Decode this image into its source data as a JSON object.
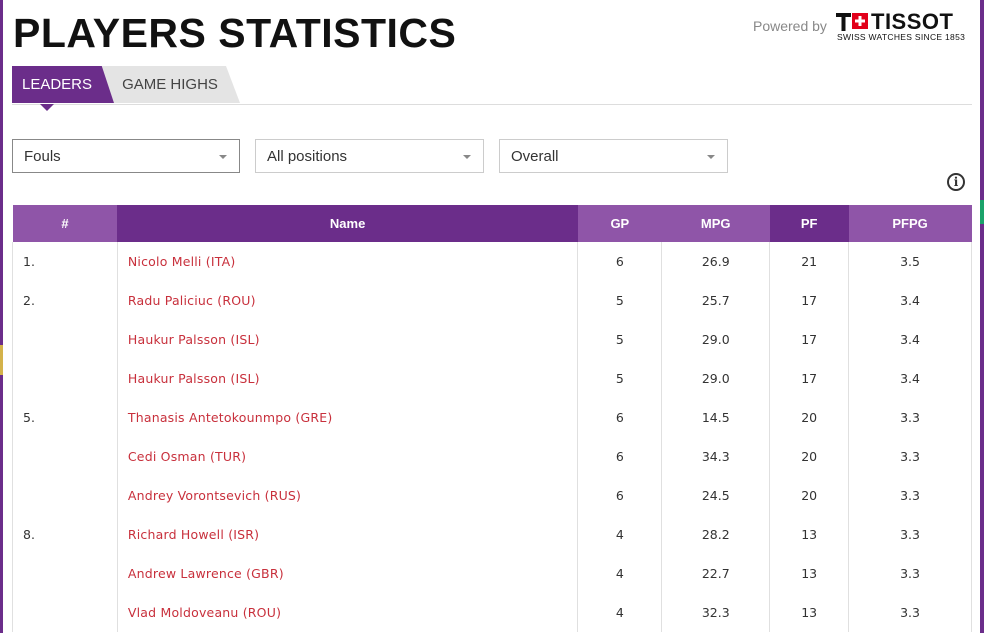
{
  "page": {
    "title": "PLAYERS STATISTICS"
  },
  "sponsor": {
    "powered_by": "Powered by",
    "brand": "TISSOT",
    "tagline": "SWISS WATCHES SINCE 1853"
  },
  "tabs": [
    {
      "label": "LEADERS",
      "active": true
    },
    {
      "label": "GAME HIGHS",
      "active": false
    }
  ],
  "filters": {
    "stat": "Fouls",
    "position": "All positions",
    "scope": "Overall"
  },
  "info_icon": "i",
  "colors": {
    "accent": "#6b2d8a",
    "accent_light": "#8f55a8",
    "player_link": "#c8303c"
  },
  "table": {
    "headers": [
      "#",
      "Name",
      "GP",
      "MPG",
      "PF",
      "PFPG"
    ],
    "rows": [
      {
        "rank": "1.",
        "name": "Nicolo Melli (ITA)",
        "gp": "6",
        "mpg": "26.9",
        "pf": "21",
        "pfpg": "3.5"
      },
      {
        "rank": "2.",
        "name": "Radu Paliciuc (ROU)",
        "gp": "5",
        "mpg": "25.7",
        "pf": "17",
        "pfpg": "3.4"
      },
      {
        "rank": "",
        "name": "Haukur Palsson (ISL)",
        "gp": "5",
        "mpg": "29.0",
        "pf": "17",
        "pfpg": "3.4"
      },
      {
        "rank": "",
        "name": "Haukur Palsson (ISL)",
        "gp": "5",
        "mpg": "29.0",
        "pf": "17",
        "pfpg": "3.4"
      },
      {
        "rank": "5.",
        "name": "Thanasis Antetokounmpo (GRE)",
        "gp": "6",
        "mpg": "14.5",
        "pf": "20",
        "pfpg": "3.3"
      },
      {
        "rank": "",
        "name": "Cedi Osman (TUR)",
        "gp": "6",
        "mpg": "34.3",
        "pf": "20",
        "pfpg": "3.3"
      },
      {
        "rank": "",
        "name": "Andrey Vorontsevich (RUS)",
        "gp": "6",
        "mpg": "24.5",
        "pf": "20",
        "pfpg": "3.3"
      },
      {
        "rank": "8.",
        "name": "Richard Howell (ISR)",
        "gp": "4",
        "mpg": "28.2",
        "pf": "13",
        "pfpg": "3.3"
      },
      {
        "rank": "",
        "name": "Andrew Lawrence (GBR)",
        "gp": "4",
        "mpg": "22.7",
        "pf": "13",
        "pfpg": "3.3"
      },
      {
        "rank": "",
        "name": "Vlad Moldoveanu (ROU)",
        "gp": "4",
        "mpg": "32.3",
        "pf": "13",
        "pfpg": "3.3"
      }
    ]
  }
}
